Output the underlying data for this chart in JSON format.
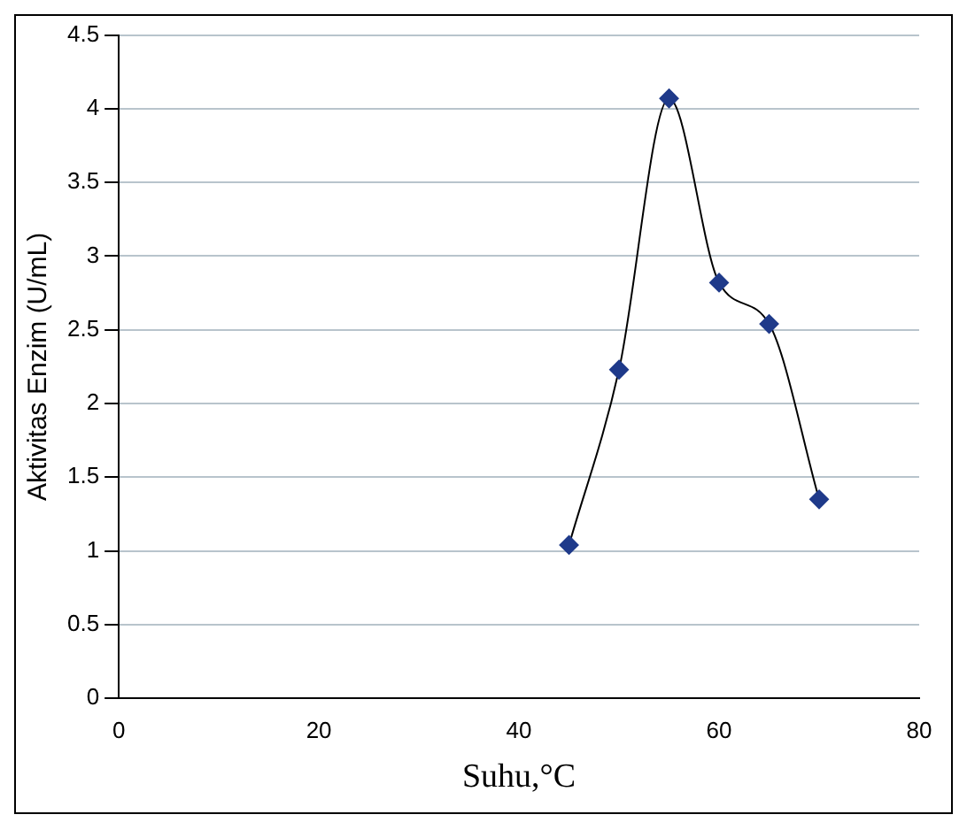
{
  "chart_data": {
    "type": "line",
    "xlabel": "Suhu,°C",
    "ylabel": "Aktivitas Enzim (U/mL)",
    "series": [
      {
        "color": "#1f3a8a",
        "x": [
          45,
          50,
          55,
          60,
          65,
          70
        ],
        "values": [
          1.04,
          2.23,
          4.07,
          2.82,
          2.54,
          1.35
        ]
      }
    ],
    "xlim": [
      0,
      80
    ],
    "xticks": [
      0,
      20,
      40,
      60,
      80
    ],
    "ylim": [
      0,
      4.5
    ],
    "yticks": [
      0,
      0.5,
      1,
      1.5,
      2,
      2.5,
      3,
      3.5,
      4,
      4.5
    ],
    "grid": "y",
    "marker": "diamond",
    "legend": false
  }
}
